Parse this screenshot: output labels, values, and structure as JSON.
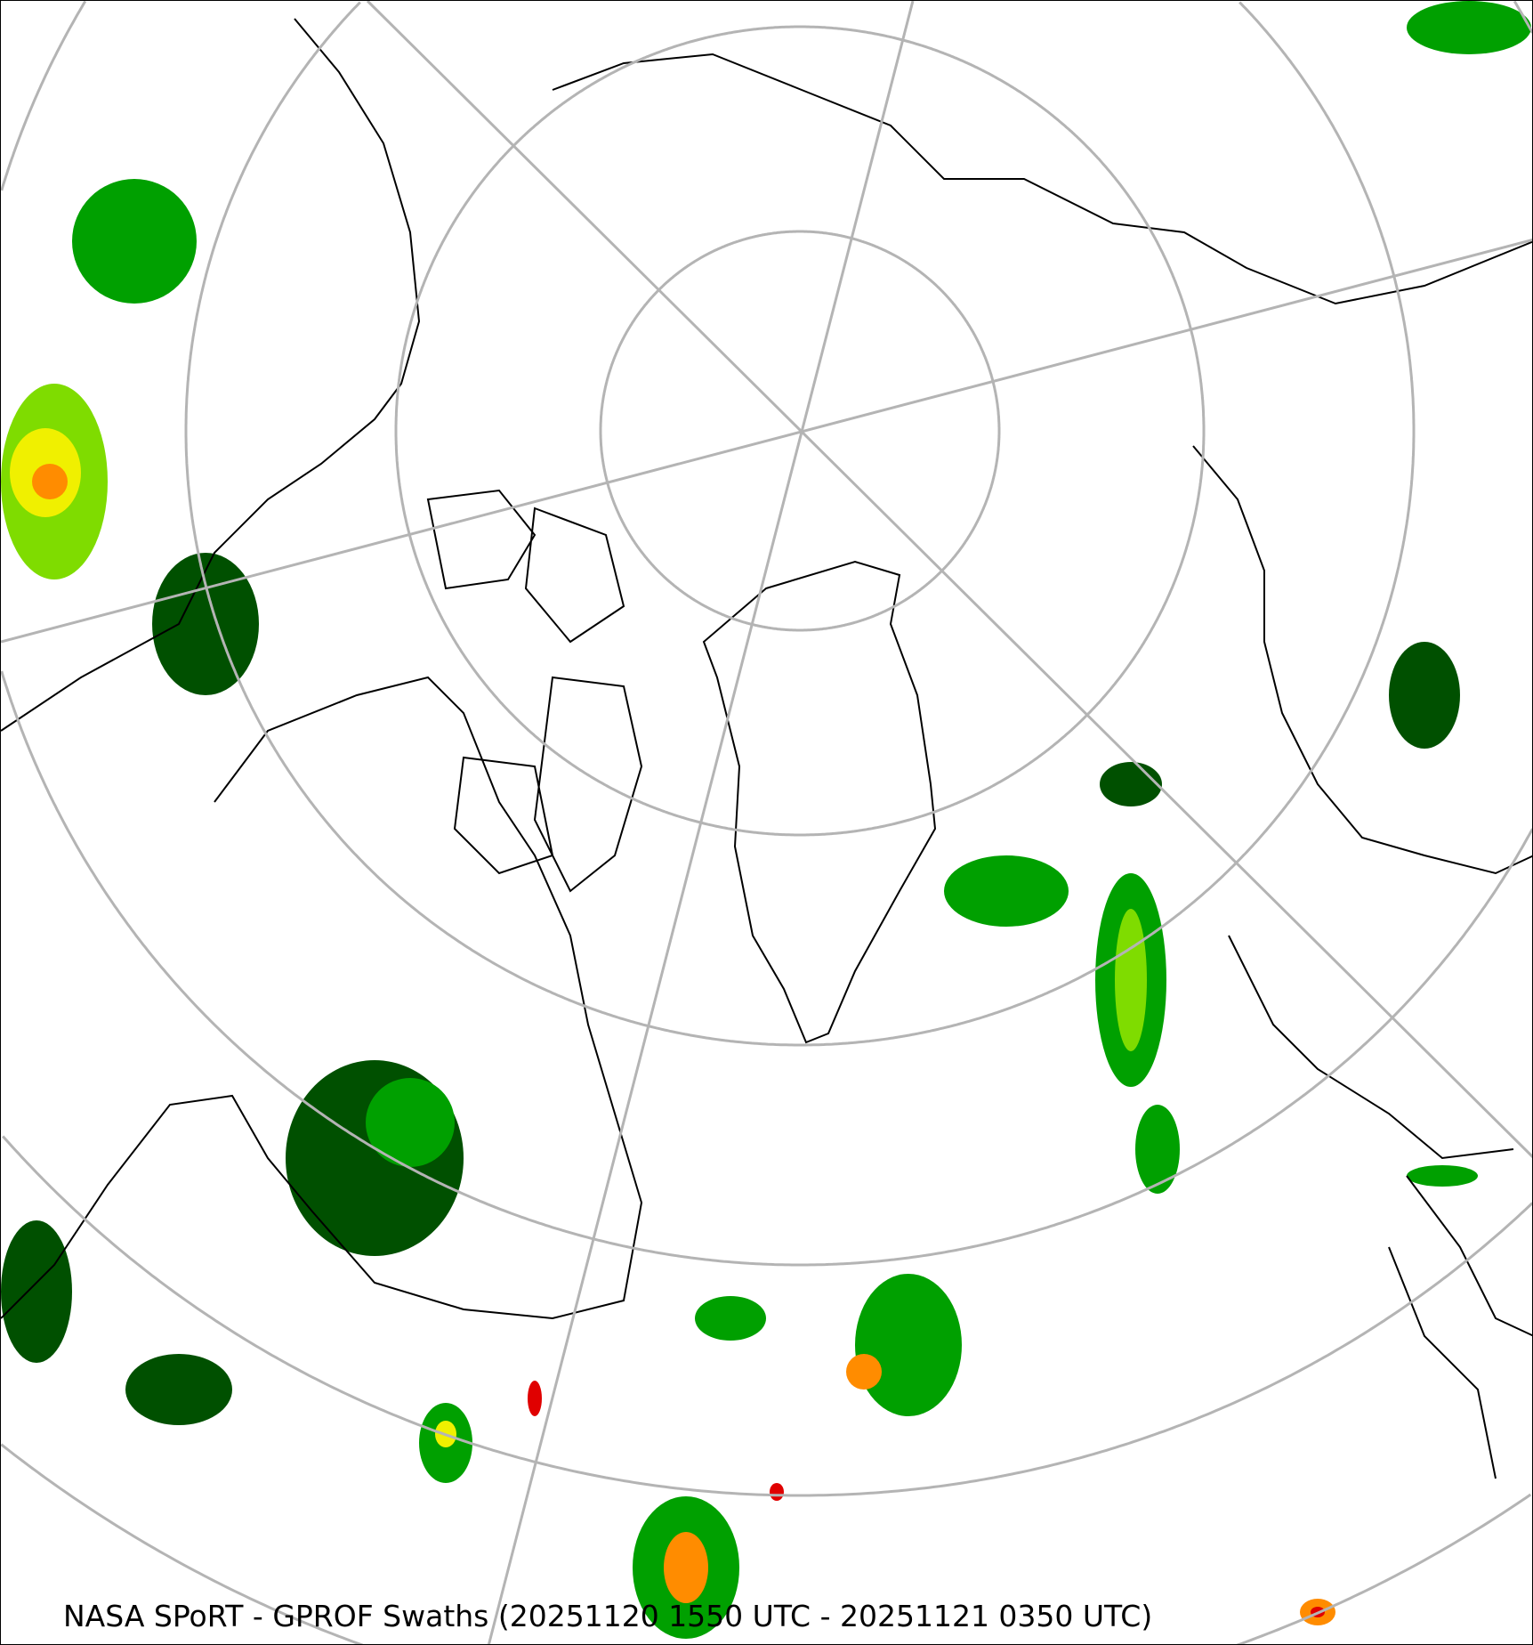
{
  "title": "NASA SPoRT - GPROF Swaths (20251120 1550 UTC - 20251121 0350 UTC)",
  "projection": "north-polar-stereographic",
  "colors": {
    "graticule": "#b4b4b4",
    "coastline": "#000000",
    "precip_light_dark": "#005000",
    "precip_light": "#00a000",
    "precip_moderate": "#7fdc00",
    "precip_heavy": "#f0f000",
    "precip_very_heavy": "#ff8c00",
    "precip_extreme": "#e00000"
  }
}
